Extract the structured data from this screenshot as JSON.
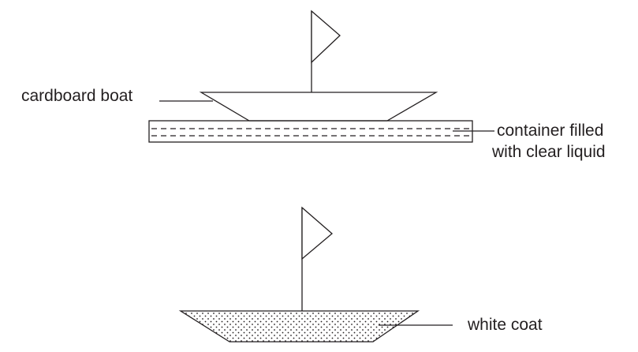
{
  "labels": {
    "cardboard_boat": "cardboard boat",
    "container_line1": "container filled",
    "container_line2": "with clear liquid",
    "white_coat": "white coat"
  },
  "colors": {
    "ink": "#231f20",
    "background": "#ffffff"
  }
}
